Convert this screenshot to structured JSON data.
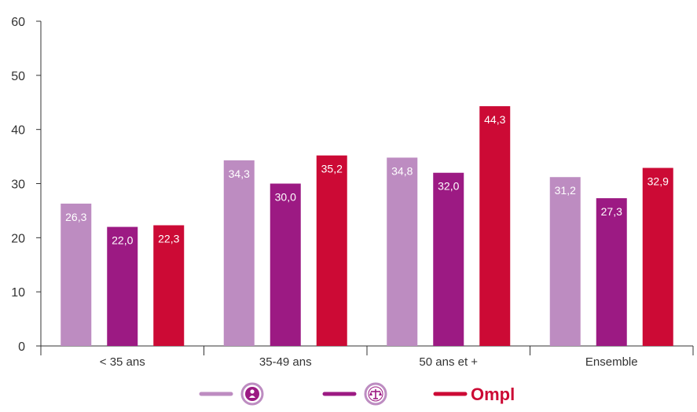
{
  "chart_data": {
    "type": "bar",
    "categories": [
      "< 35 ans",
      "35-49 ans",
      "50 ans et +",
      "Ensemble"
    ],
    "series": [
      {
        "color": "#bd8cc1",
        "values": [
          26.3,
          34.3,
          34.8,
          31.2
        ],
        "labels": [
          "26,3",
          "34,3",
          "34,8",
          "31,2"
        ],
        "legend_icon": "person-badge-icon"
      },
      {
        "color": "#9c1a83",
        "values": [
          22.0,
          30.0,
          32.0,
          27.3
        ],
        "labels": [
          "22,0",
          "30,0",
          "32,0",
          "27,3"
        ],
        "legend_icon": "scales-of-justice-icon"
      },
      {
        "color": "#cc0a35",
        "values": [
          22.3,
          35.2,
          44.3,
          32.9
        ],
        "labels": [
          "22,3",
          "35,2",
          "44,3",
          "32,9"
        ],
        "legend_icon": "ompl-logo"
      }
    ],
    "yticks": [
      "0",
      "10",
      "20",
      "30",
      "40",
      "50",
      "60"
    ],
    "ylim": [
      0,
      60
    ],
    "grid": false,
    "legend_position": "bottom",
    "legend_logo_text": "Ompl"
  }
}
